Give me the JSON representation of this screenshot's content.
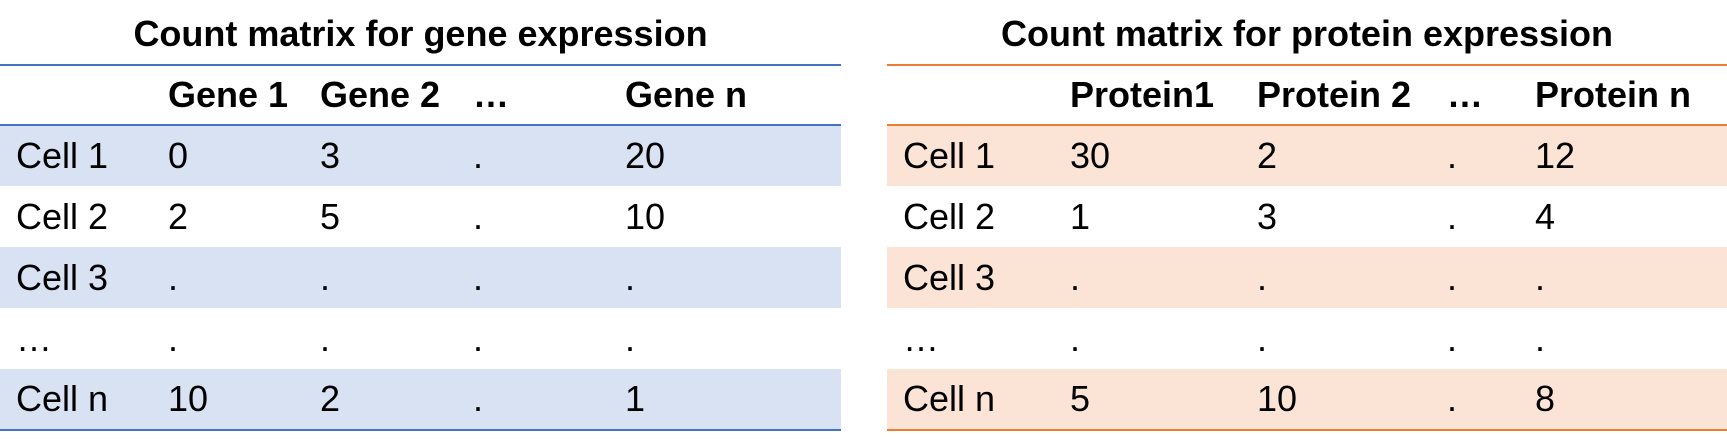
{
  "colors": {
    "gene_accent": "#4472c4",
    "gene_row_shade": "#d9e2f3",
    "protein_accent": "#ed7d31",
    "protein_row_shade": "#fbe4d5"
  },
  "gene_matrix": {
    "title": "Count matrix for gene expression",
    "header": [
      "",
      "Gene 1",
      "Gene 2",
      "…",
      "Gene n"
    ],
    "rows": [
      [
        "Cell 1",
        "0",
        "3",
        ".",
        "20"
      ],
      [
        "Cell 2",
        "2",
        "5",
        ".",
        "10"
      ],
      [
        "Cell 3",
        ".",
        ".",
        ".",
        "."
      ],
      [
        "…",
        ".",
        ".",
        ".",
        "."
      ],
      [
        "Cell n",
        "10",
        "2",
        ".",
        "1"
      ]
    ]
  },
  "protein_matrix": {
    "title": "Count matrix for protein expression",
    "header": [
      "",
      "Protein1",
      "Protein 2",
      "…",
      "Protein n"
    ],
    "rows": [
      [
        "Cell 1",
        "30",
        "2",
        ".",
        "12"
      ],
      [
        "Cell 2",
        "1",
        "3",
        ".",
        "4"
      ],
      [
        "Cell 3",
        ".",
        ".",
        ".",
        "."
      ],
      [
        "…",
        ".",
        ".",
        ".",
        "."
      ],
      [
        "Cell n",
        "5",
        "10",
        ".",
        "8"
      ]
    ]
  }
}
